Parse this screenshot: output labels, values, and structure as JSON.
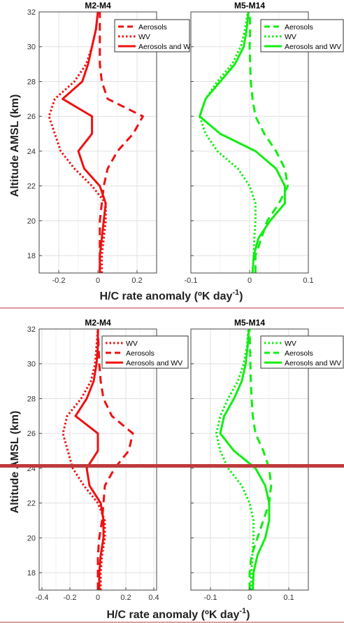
{
  "figure": {
    "top_ylabel": "Altitude AMSL (km)",
    "bottom_ylabel": "Altitude AMSL (km)",
    "top_xlabel_main": "H/C rate anomaly (ºK day",
    "top_xlabel_sup": "-1",
    "top_xlabel_end": ")",
    "bottom_xlabel_main": "H/C rate anomaly (ºK day",
    "bottom_xlabel_sup": "-1",
    "bottom_xlabel_end": ")",
    "colors": {
      "red": "#ee1111",
      "green": "#11ee11",
      "divider": "#c0393b",
      "highlight": "#c0393b"
    }
  },
  "chart_data": [
    {
      "type": "line",
      "title": "M2-M4",
      "ylim": [
        17,
        32
      ],
      "xlim": [
        -0.3,
        0.3
      ],
      "xticks": [
        -0.2,
        0,
        0.2
      ],
      "xticklabels": [
        "-0.2",
        "0",
        "0.2"
      ],
      "yticks": [
        18,
        20,
        22,
        24,
        26,
        28,
        30,
        32
      ],
      "yticklabels": [
        "18",
        "20",
        "22",
        "24",
        "26",
        "28",
        "30",
        "32"
      ],
      "grid": true,
      "legend": "top-right",
      "color": "#ee1111",
      "series": [
        {
          "name": "Aerosols",
          "style": "dashed",
          "points": [
            [
              0.01,
              17
            ],
            [
              0.01,
              18
            ],
            [
              0.01,
              19
            ],
            [
              0.01,
              20
            ],
            [
              0.02,
              21
            ],
            [
              0.03,
              22
            ],
            [
              0.05,
              23
            ],
            [
              0.1,
              24
            ],
            [
              0.18,
              25
            ],
            [
              0.23,
              26
            ],
            [
              0.05,
              27
            ],
            [
              0.02,
              28
            ],
            [
              0.01,
              29
            ],
            [
              0.01,
              30
            ],
            [
              0.01,
              31
            ],
            [
              0.01,
              32
            ]
          ]
        },
        {
          "name": "WV",
          "style": "dotted",
          "points": [
            [
              0.02,
              17
            ],
            [
              0.02,
              18
            ],
            [
              0.03,
              19
            ],
            [
              0.04,
              20
            ],
            [
              0.04,
              21
            ],
            [
              -0.03,
              22
            ],
            [
              -0.12,
              23
            ],
            [
              -0.19,
              24
            ],
            [
              -0.25,
              26
            ],
            [
              -0.22,
              27
            ],
            [
              -0.12,
              28
            ],
            [
              -0.06,
              29
            ],
            [
              -0.03,
              30
            ],
            [
              -0.01,
              31
            ],
            [
              0,
              32
            ]
          ]
        },
        {
          "name": "Aerosols and WV",
          "style": "solid",
          "points": [
            [
              0.01,
              17
            ],
            [
              0.01,
              18
            ],
            [
              0.02,
              19
            ],
            [
              0.03,
              20
            ],
            [
              0.04,
              21
            ],
            [
              0.01,
              22
            ],
            [
              -0.07,
              23
            ],
            [
              -0.1,
              24
            ],
            [
              -0.03,
              25
            ],
            [
              -0.03,
              26
            ],
            [
              -0.18,
              27
            ],
            [
              -0.08,
              28
            ],
            [
              -0.05,
              29
            ],
            [
              -0.03,
              30
            ],
            [
              -0.01,
              31
            ],
            [
              0,
              32
            ]
          ]
        }
      ]
    },
    {
      "type": "line",
      "title": "M5-M14",
      "ylim": [
        17,
        32
      ],
      "xlim": [
        -0.1,
        0.1
      ],
      "xticks": [
        -0.1,
        0,
        0.1
      ],
      "xticklabels": [
        "-0.1",
        "0",
        "0.1"
      ],
      "yticks": [
        18,
        20,
        22,
        24,
        26,
        28,
        30,
        32
      ],
      "grid": true,
      "legend": "top-right",
      "color": "#11ee11",
      "series": [
        {
          "name": "Aerosols",
          "style": "dashed",
          "points": [
            [
              0.01,
              17
            ],
            [
              0.01,
              18
            ],
            [
              0.02,
              19
            ],
            [
              0.03,
              20
            ],
            [
              0.05,
              21
            ],
            [
              0.065,
              22
            ],
            [
              0.06,
              23
            ],
            [
              0.045,
              24
            ],
            [
              0.025,
              25
            ],
            [
              0.01,
              26
            ],
            [
              0.005,
              27
            ],
            [
              0.002,
              28
            ],
            [
              0.001,
              29
            ],
            [
              0,
              30
            ],
            [
              0.001,
              31
            ],
            [
              0,
              32
            ]
          ]
        },
        {
          "name": "WV",
          "style": "dotted",
          "points": [
            [
              0.005,
              17
            ],
            [
              0.007,
              18
            ],
            [
              0.008,
              19
            ],
            [
              0.01,
              20
            ],
            [
              0.01,
              21
            ],
            [
              0,
              22
            ],
            [
              -0.02,
              23
            ],
            [
              -0.055,
              24
            ],
            [
              -0.075,
              25
            ],
            [
              -0.085,
              26
            ],
            [
              -0.075,
              27
            ],
            [
              -0.055,
              28
            ],
            [
              -0.03,
              29
            ],
            [
              -0.015,
              30
            ],
            [
              -0.008,
              31
            ],
            [
              -0.003,
              32
            ]
          ]
        },
        {
          "name": "Aerosols and WV",
          "style": "solid",
          "points": [
            [
              0.005,
              17
            ],
            [
              0.007,
              18
            ],
            [
              0.015,
              19
            ],
            [
              0.035,
              20
            ],
            [
              0.06,
              21
            ],
            [
              0.06,
              22
            ],
            [
              0.045,
              23
            ],
            [
              0.01,
              24
            ],
            [
              -0.05,
              25
            ],
            [
              -0.085,
              26
            ],
            [
              -0.075,
              27
            ],
            [
              -0.05,
              28
            ],
            [
              -0.025,
              29
            ],
            [
              -0.01,
              30
            ],
            [
              -0.005,
              31
            ],
            [
              -0.002,
              32
            ]
          ]
        }
      ]
    },
    {
      "type": "line",
      "title": "M2-M4",
      "ylim": [
        17,
        32
      ],
      "xlim": [
        -0.42,
        0.42
      ],
      "xticks": [
        -0.4,
        -0.2,
        0,
        0.2,
        0.4
      ],
      "xticklabels": [
        "-0.4",
        "-0.2",
        "0",
        "0.2",
        "0.4"
      ],
      "yticks": [
        18,
        20,
        22,
        24,
        26,
        28,
        30,
        32
      ],
      "yticklabels": [
        "18",
        "20",
        "22",
        "24",
        "26",
        "28",
        "30",
        "32"
      ],
      "grid": true,
      "legend": "top-right",
      "color": "#ee1111",
      "series": [
        {
          "name": "WV",
          "style": "dotted",
          "points": [
            [
              0.02,
              17
            ],
            [
              0.02,
              18
            ],
            [
              0.03,
              19
            ],
            [
              0.05,
              20
            ],
            [
              0.05,
              21
            ],
            [
              0,
              22
            ],
            [
              -0.1,
              23
            ],
            [
              -0.18,
              24
            ],
            [
              -0.25,
              26
            ],
            [
              -0.22,
              27
            ],
            [
              -0.12,
              28
            ],
            [
              -0.05,
              29
            ],
            [
              -0.02,
              30
            ],
            [
              -0.01,
              31
            ],
            [
              0,
              32
            ]
          ]
        },
        {
          "name": "Aerosols",
          "style": "dashed",
          "points": [
            [
              0,
              17
            ],
            [
              0,
              18
            ],
            [
              0,
              19
            ],
            [
              0.01,
              20
            ],
            [
              0.03,
              21
            ],
            [
              0.04,
              22
            ],
            [
              0.05,
              23
            ],
            [
              0.12,
              24
            ],
            [
              0.22,
              25
            ],
            [
              0.25,
              26
            ],
            [
              0.1,
              27
            ],
            [
              0.04,
              28
            ],
            [
              0.02,
              29
            ],
            [
              0.01,
              30
            ],
            [
              0.005,
              31
            ],
            [
              0,
              32
            ]
          ]
        },
        {
          "name": "Aerosols and WV",
          "style": "solid",
          "points": [
            [
              0.01,
              17
            ],
            [
              0.01,
              18
            ],
            [
              0.02,
              19
            ],
            [
              0.04,
              20
            ],
            [
              0.04,
              21
            ],
            [
              0.02,
              22
            ],
            [
              -0.06,
              23
            ],
            [
              -0.08,
              24
            ],
            [
              0,
              25
            ],
            [
              0,
              26
            ],
            [
              -0.16,
              27
            ],
            [
              -0.08,
              28
            ],
            [
              -0.03,
              29
            ],
            [
              -0.01,
              30
            ],
            [
              0,
              31
            ],
            [
              0,
              32
            ]
          ]
        }
      ]
    },
    {
      "type": "line",
      "title": "M5-M14",
      "ylim": [
        17,
        32
      ],
      "xlim": [
        -0.15,
        0.15
      ],
      "xticks": [
        -0.1,
        0,
        0.1
      ],
      "xticklabels": [
        "-0.1",
        "0",
        "0.1"
      ],
      "yticks": [
        18,
        20,
        22,
        24,
        26,
        28,
        30,
        32
      ],
      "grid": true,
      "legend": "top-right",
      "color": "#11ee11",
      "series": [
        {
          "name": "WV",
          "style": "dotted",
          "points": [
            [
              0.003,
              17
            ],
            [
              0.005,
              18
            ],
            [
              0.007,
              19
            ],
            [
              0.01,
              20
            ],
            [
              0.01,
              21
            ],
            [
              0,
              22
            ],
            [
              -0.02,
              23
            ],
            [
              -0.055,
              24
            ],
            [
              -0.075,
              25
            ],
            [
              -0.085,
              26
            ],
            [
              -0.075,
              27
            ],
            [
              -0.055,
              28
            ],
            [
              -0.03,
              29
            ],
            [
              -0.015,
              30
            ],
            [
              -0.007,
              31
            ],
            [
              -0.003,
              32
            ]
          ]
        },
        {
          "name": "Aerosols",
          "style": "dashed",
          "points": [
            [
              0,
              17
            ],
            [
              0,
              18
            ],
            [
              0.005,
              19
            ],
            [
              0.02,
              20
            ],
            [
              0.035,
              21
            ],
            [
              0.05,
              22
            ],
            [
              0.055,
              23
            ],
            [
              0.05,
              24
            ],
            [
              0.035,
              25
            ],
            [
              0.015,
              26
            ],
            [
              0.008,
              27
            ],
            [
              0.005,
              28
            ],
            [
              0.003,
              29
            ],
            [
              0.002,
              30
            ],
            [
              0.001,
              31
            ],
            [
              0,
              32
            ]
          ]
        },
        {
          "name": "Aerosols and WV",
          "style": "solid",
          "points": [
            [
              0.008,
              17
            ],
            [
              0.01,
              18
            ],
            [
              0.02,
              19
            ],
            [
              0.04,
              20
            ],
            [
              0.05,
              21
            ],
            [
              0.05,
              22
            ],
            [
              0.04,
              23
            ],
            [
              0.015,
              24
            ],
            [
              -0.04,
              25
            ],
            [
              -0.075,
              26
            ],
            [
              -0.065,
              27
            ],
            [
              -0.04,
              28
            ],
            [
              -0.02,
              29
            ],
            [
              -0.01,
              30
            ],
            [
              -0.005,
              31
            ],
            [
              -0.002,
              32
            ]
          ]
        }
      ]
    }
  ]
}
